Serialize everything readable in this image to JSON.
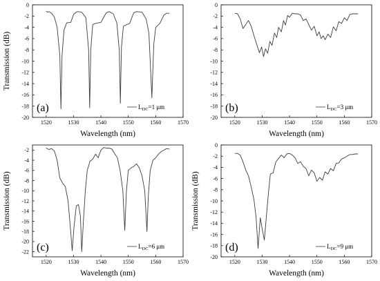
{
  "chart_data": [
    {
      "type": "line",
      "panel_label": "(a)",
      "xlabel": "Wavelength (nm)",
      "ylabel": "Transmission (dB)",
      "xlim": [
        1515,
        1570
      ],
      "ylim": [
        -20,
        0
      ],
      "xticks": [
        1520,
        1530,
        1540,
        1550,
        1560,
        1570
      ],
      "yticks": [
        0,
        -2,
        -4,
        -6,
        -8,
        -10,
        -12,
        -14,
        -16,
        -18,
        -20
      ],
      "legend": {
        "prefix": "L",
        "sub": "DC",
        "suffix": "=1 μm",
        "position": "bottom-right"
      },
      "series": [
        {
          "x": [
            1520,
            1520.5,
            1521,
            1522,
            1523,
            1524,
            1525,
            1525.4,
            1525.8,
            1526.5,
            1527.5,
            1529,
            1530,
            1531,
            1531.5,
            1533,
            1534.5,
            1535.5,
            1535.9,
            1536.3,
            1537,
            1538,
            1540,
            1541,
            1542,
            1543,
            1544.5,
            1545.8,
            1546.7,
            1547.1,
            1547.5,
            1548.2,
            1549.5,
            1550.5,
            1551.5,
            1552,
            1553,
            1555,
            1556.5,
            1557.5,
            1558,
            1558.6,
            1559.3,
            1560,
            1561.5,
            1563,
            1564,
            1565
          ],
          "y": [
            -1.1,
            -1.3,
            -1.2,
            -1.5,
            -2.2,
            -4,
            -9,
            -18.5,
            -9,
            -4.5,
            -3.2,
            -3.1,
            -1.7,
            -1.3,
            -1.2,
            -1.3,
            -2.3,
            -8,
            -18.3,
            -8,
            -3.5,
            -3.3,
            -3.1,
            -2.2,
            -1.4,
            -1.2,
            -1.6,
            -3.2,
            -8,
            -17.5,
            -7.5,
            -3.8,
            -3.5,
            -3.3,
            -2,
            -1.4,
            -1.2,
            -1.3,
            -2.5,
            -5,
            -10,
            -16.5,
            -7,
            -4,
            -3.3,
            -1.8,
            -1.5,
            -1.5
          ]
        }
      ]
    },
    {
      "type": "line",
      "panel_label": "(b)",
      "xlabel": "Wavelength (nm)",
      "ylabel": "",
      "xlim": [
        1515,
        1570
      ],
      "ylim": [
        -20,
        0
      ],
      "xticks": [
        1520,
        1530,
        1540,
        1550,
        1560,
        1570
      ],
      "yticks": [
        0,
        -2,
        -4,
        -6,
        -8,
        -10,
        -12,
        -14,
        -16,
        -18,
        -20
      ],
      "legend": {
        "prefix": "L",
        "sub": "DC",
        "suffix": "=3 μm",
        "position": "bottom-right"
      },
      "series": [
        {
          "x": [
            1520,
            1521,
            1522,
            1523,
            1524,
            1525,
            1526,
            1527,
            1528,
            1529,
            1529.8,
            1530.5,
            1531.2,
            1532,
            1532.8,
            1533.6,
            1534.5,
            1535.3,
            1536,
            1537,
            1537.8,
            1538.5,
            1539.3,
            1540,
            1541,
            1542,
            1543,
            1544,
            1545,
            1546,
            1547,
            1548,
            1549,
            1550,
            1550.8,
            1551.5,
            1552.3,
            1553,
            1554,
            1555,
            1556,
            1557,
            1558,
            1559,
            1560,
            1561,
            1562,
            1563,
            1564,
            1565
          ],
          "y": [
            -1.5,
            -1.6,
            -2.5,
            -4.2,
            -3.5,
            -2.8,
            -3.8,
            -5.5,
            -7,
            -8.5,
            -7.5,
            -9.2,
            -7.8,
            -8.6,
            -6.5,
            -7.2,
            -5,
            -5.8,
            -4,
            -4.8,
            -2.8,
            -3.6,
            -1.9,
            -2.2,
            -1.5,
            -1.6,
            -1.6,
            -1.8,
            -2.8,
            -2.5,
            -3.5,
            -4.5,
            -3.8,
            -5.5,
            -4.8,
            -6,
            -5.5,
            -6.2,
            -5.2,
            -5.8,
            -3.9,
            -4.6,
            -3,
            -3.3,
            -2.3,
            -2.8,
            -1.7,
            -1.6,
            -1.6,
            -1.6
          ]
        }
      ]
    },
    {
      "type": "line",
      "panel_label": "(c)",
      "xlabel": "Wavelength (nm)",
      "ylabel": "Transmission (dB)",
      "xlim": [
        1515,
        1570
      ],
      "ylim": [
        -23,
        -1
      ],
      "xticks": [
        1520,
        1530,
        1540,
        1550,
        1560,
        1570
      ],
      "yticks": [
        -2,
        -4,
        -6,
        -8,
        -10,
        -12,
        -14,
        -16,
        -18,
        -20,
        -22
      ],
      "legend": {
        "prefix": "L",
        "sub": "DC",
        "suffix": "=6 μm",
        "position": "bottom-right"
      },
      "series": [
        {
          "x": [
            1520,
            1521,
            1522,
            1523,
            1524,
            1525,
            1526,
            1527,
            1528,
            1528.8,
            1529.5,
            1530.2,
            1531,
            1531.8,
            1532.5,
            1533,
            1533.6,
            1534.3,
            1535,
            1536,
            1537,
            1538,
            1539,
            1540,
            1541,
            1542,
            1543,
            1544,
            1545,
            1546,
            1547,
            1548,
            1548.7,
            1549.3,
            1550,
            1551,
            1552,
            1553,
            1554,
            1555,
            1556,
            1556.8,
            1557.3,
            1558,
            1559,
            1560,
            1561,
            1562,
            1563,
            1564,
            1565
          ],
          "y": [
            -1.6,
            -1.9,
            -1.7,
            -2.2,
            -4,
            -7.5,
            -8.5,
            -9.2,
            -12,
            -17,
            -21.8,
            -17,
            -13,
            -12.7,
            -15,
            -22,
            -16,
            -10,
            -6,
            -4.2,
            -3.8,
            -2.8,
            -3.5,
            -2,
            -1.5,
            -1.6,
            -1.6,
            -1.8,
            -2.7,
            -3.5,
            -6,
            -10,
            -17.8,
            -10,
            -6,
            -5.5,
            -5.2,
            -4.7,
            -5.5,
            -7,
            -10,
            -18,
            -11,
            -6,
            -4,
            -3.5,
            -2.8,
            -2.3,
            -2,
            -1.7,
            -1.8
          ]
        }
      ]
    },
    {
      "type": "line",
      "panel_label": "(d)",
      "xlabel": "Wavelength (nm)",
      "ylabel": "Transmission (dB)",
      "xlim": [
        1515,
        1570
      ],
      "ylim": [
        -20,
        0
      ],
      "xticks": [
        1520,
        1530,
        1540,
        1550,
        1560,
        1570
      ],
      "yticks": [
        0,
        -2,
        -4,
        -6,
        -8,
        -10,
        -12,
        -14,
        -16,
        -18,
        -20
      ],
      "legend": {
        "prefix": "L",
        "sub": "DC",
        "suffix": "=9 μm",
        "position": "bottom-right"
      },
      "series": [
        {
          "x": [
            1520,
            1521,
            1522,
            1523,
            1524,
            1525,
            1526,
            1527,
            1527.8,
            1528.5,
            1529.3,
            1530,
            1530.8,
            1531.5,
            1532.3,
            1533,
            1534,
            1535,
            1536,
            1537,
            1538,
            1539,
            1540,
            1541,
            1542,
            1543,
            1544,
            1545,
            1546,
            1547,
            1548,
            1549,
            1550,
            1551,
            1552,
            1553,
            1554,
            1555,
            1556,
            1557,
            1558,
            1559,
            1560,
            1561,
            1562,
            1563,
            1564,
            1565
          ],
          "y": [
            -1.5,
            -1.5,
            -1.8,
            -3,
            -4.5,
            -5.5,
            -7.5,
            -9.8,
            -13,
            -18.5,
            -13,
            -15,
            -17,
            -13,
            -8.5,
            -5.2,
            -5,
            -3,
            -2.4,
            -1.8,
            -2.3,
            -1.6,
            -1.5,
            -1.8,
            -2.3,
            -3.3,
            -3,
            -3.8,
            -4.2,
            -5.5,
            -4.5,
            -5,
            -6.5,
            -5.8,
            -6.3,
            -4.8,
            -5.2,
            -4.2,
            -4.6,
            -3.3,
            -3.2,
            -2.5,
            -2.3,
            -2,
            -1.7,
            -1.7,
            -1.6,
            -1.6
          ]
        }
      ]
    }
  ]
}
